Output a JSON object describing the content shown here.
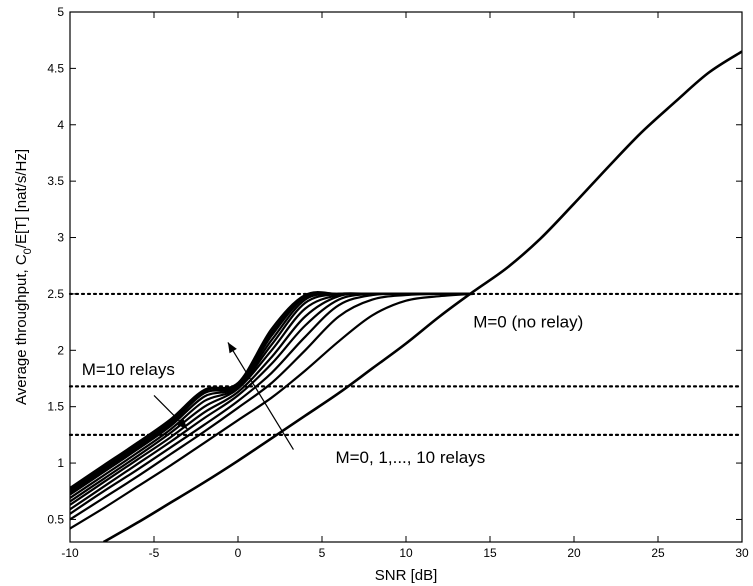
{
  "chart_data": {
    "type": "line",
    "title": "",
    "xlabel": "SNR [dB]",
    "ylabel": "Average throughput, C_0/E[T] [nat/s/Hz]",
    "ylabel_parts": {
      "before_sub": "Average throughput, C",
      "sub": "0",
      "after_sub": "/E[T] [nat/s/Hz]"
    },
    "xlim": [
      -10,
      30
    ],
    "ylim": [
      0.3,
      5
    ],
    "xticks": [
      "-10",
      "-5",
      "0",
      "5",
      "10",
      "15",
      "20",
      "25",
      "30"
    ],
    "yticks": [
      "0.5",
      "1",
      "1.5",
      "2",
      "2.5",
      "3",
      "3.5",
      "4",
      "4.5",
      "5"
    ],
    "grid": false,
    "line_color": "#000000",
    "reference_lines": [
      {
        "y": 2.5,
        "style": "dotted"
      },
      {
        "y": 1.68,
        "style": "dotted"
      },
      {
        "y": 1.25,
        "style": "dotted"
      }
    ],
    "series": [
      {
        "x": [
          -8,
          -6,
          -4,
          -2,
          0,
          2,
          4,
          6,
          8,
          10,
          12,
          14,
          16,
          18,
          20,
          22,
          24,
          26,
          28,
          30
        ],
        "y": [
          0.3,
          0.47,
          0.65,
          0.83,
          1.02,
          1.22,
          1.42,
          1.62,
          1.84,
          2.06,
          2.3,
          2.52,
          2.73,
          2.99,
          3.3,
          3.62,
          3.93,
          4.2,
          4.46,
          4.65
        ]
      },
      {
        "x": [
          -10,
          -8,
          -6,
          -4,
          -2,
          0,
          2,
          4,
          6,
          8,
          10,
          12,
          14
        ],
        "y": [
          0.42,
          0.6,
          0.79,
          0.98,
          1.18,
          1.38,
          1.58,
          1.82,
          2.08,
          2.31,
          2.44,
          2.48,
          2.5
        ]
      },
      {
        "x": [
          -10,
          -8,
          -6,
          -4,
          -2,
          0,
          2,
          4,
          6,
          8,
          10,
          12,
          14
        ],
        "y": [
          0.5,
          0.69,
          0.88,
          1.08,
          1.28,
          1.49,
          1.71,
          2.0,
          2.3,
          2.45,
          2.49,
          2.5,
          2.5
        ]
      },
      {
        "x": [
          -10,
          -8,
          -6,
          -4,
          -2,
          0,
          2,
          4,
          6,
          8,
          10,
          12,
          14
        ],
        "y": [
          0.55,
          0.75,
          0.94,
          1.14,
          1.34,
          1.55,
          1.8,
          2.12,
          2.4,
          2.49,
          2.5,
          2.5,
          2.5
        ]
      },
      {
        "x": [
          -10,
          -8,
          -6,
          -4,
          -2,
          0,
          2,
          4,
          6,
          8,
          10,
          12,
          14
        ],
        "y": [
          0.59,
          0.79,
          0.99,
          1.19,
          1.4,
          1.6,
          1.88,
          2.22,
          2.45,
          2.5,
          2.5,
          2.5,
          2.5
        ]
      },
      {
        "x": [
          -10,
          -8,
          -6,
          -4,
          -2,
          0,
          2,
          4,
          6,
          8,
          10,
          12,
          14
        ],
        "y": [
          0.63,
          0.83,
          1.03,
          1.23,
          1.45,
          1.63,
          1.94,
          2.3,
          2.48,
          2.5,
          2.5,
          2.5,
          2.5
        ]
      },
      {
        "x": [
          -10,
          -8,
          -6,
          -4,
          -2,
          0,
          2,
          4,
          6,
          8,
          10,
          12,
          14
        ],
        "y": [
          0.66,
          0.86,
          1.06,
          1.27,
          1.5,
          1.66,
          2.0,
          2.37,
          2.49,
          2.5,
          2.5,
          2.5,
          2.5
        ]
      },
      {
        "x": [
          -10,
          -8,
          -6,
          -4,
          -2,
          0,
          2,
          4,
          6,
          8,
          10,
          12,
          14
        ],
        "y": [
          0.69,
          0.89,
          1.09,
          1.3,
          1.55,
          1.67,
          2.05,
          2.42,
          2.5,
          2.5,
          2.5,
          2.5,
          2.5
        ]
      },
      {
        "x": [
          -10,
          -8,
          -6,
          -4,
          -2,
          0,
          2,
          4,
          6,
          8,
          10,
          12,
          14
        ],
        "y": [
          0.72,
          0.92,
          1.12,
          1.33,
          1.59,
          1.68,
          2.09,
          2.45,
          2.5,
          2.5,
          2.5,
          2.5,
          2.5
        ]
      },
      {
        "x": [
          -10,
          -8,
          -6,
          -4,
          -2,
          0,
          2,
          4,
          6,
          8,
          10,
          12,
          14
        ],
        "y": [
          0.74,
          0.94,
          1.14,
          1.35,
          1.62,
          1.69,
          2.13,
          2.47,
          2.5,
          2.5,
          2.5,
          2.5,
          2.5
        ]
      },
      {
        "x": [
          -10,
          -8,
          -6,
          -4,
          -2,
          0,
          2,
          4,
          6,
          8,
          10,
          12,
          14
        ],
        "y": [
          0.76,
          0.96,
          1.16,
          1.37,
          1.64,
          1.7,
          2.16,
          2.48,
          2.5,
          2.5,
          2.5,
          2.5,
          2.5
        ]
      },
      {
        "x": [
          -10,
          -8,
          -6,
          -4,
          -2,
          0,
          2,
          4,
          6,
          8,
          10,
          12,
          14
        ],
        "y": [
          0.78,
          0.98,
          1.18,
          1.39,
          1.65,
          1.71,
          2.19,
          2.49,
          2.5,
          2.5,
          2.5,
          2.5,
          2.5
        ]
      }
    ],
    "annotations": [
      {
        "text": "M=0 (no relay)",
        "x": 14.0,
        "y": 2.2,
        "arrow_to": null
      },
      {
        "text": "M=10 relays",
        "x": -9.3,
        "y": 1.78,
        "arrow_from": [
          -5.0,
          1.6
        ],
        "arrow_to": [
          -3.0,
          1.3
        ]
      },
      {
        "text": "M=0, 1,..., 10 relays",
        "x": 5.8,
        "y": 1.0,
        "arrow_from": [
          3.3,
          1.12
        ],
        "arrow_to": [
          -0.6,
          2.07
        ]
      }
    ]
  }
}
